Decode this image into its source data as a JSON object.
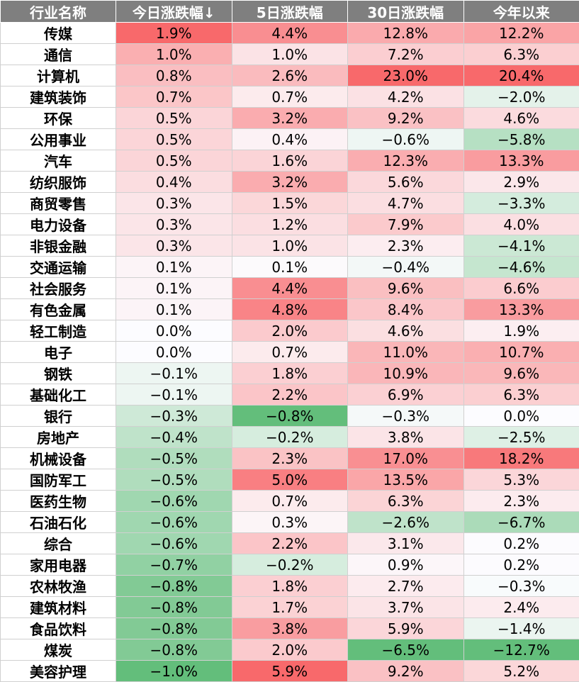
{
  "colors": {
    "header_bg": "#7f7f7f",
    "header_text": "#ffffff",
    "positive_max": "#f8696b",
    "negative_max": "#63be7b",
    "neutral": "#fcfcff"
  },
  "chart_data": {
    "type": "table",
    "columns": [
      "行业名称",
      "今日涨跌幅↓",
      "5日涨跌幅",
      "30日涨跌幅",
      "今年以来"
    ],
    "rows": [
      {
        "name": "传媒",
        "values": [
          "1.9%",
          "4.4%",
          "12.8%",
          "12.2%"
        ]
      },
      {
        "name": "通信",
        "values": [
          "1.0%",
          "1.0%",
          "7.2%",
          "6.3%"
        ]
      },
      {
        "name": "计算机",
        "values": [
          "0.8%",
          "2.6%",
          "23.0%",
          "20.4%"
        ]
      },
      {
        "name": "建筑装饰",
        "values": [
          "0.7%",
          "0.7%",
          "4.2%",
          "−2.0%"
        ]
      },
      {
        "name": "环保",
        "values": [
          "0.5%",
          "3.2%",
          "9.2%",
          "4.6%"
        ]
      },
      {
        "name": "公用事业",
        "values": [
          "0.5%",
          "0.4%",
          "−0.6%",
          "−5.8%"
        ]
      },
      {
        "name": "汽车",
        "values": [
          "0.5%",
          "1.6%",
          "12.3%",
          "13.3%"
        ]
      },
      {
        "name": "纺织服饰",
        "values": [
          "0.4%",
          "3.2%",
          "5.6%",
          "2.9%"
        ]
      },
      {
        "name": "商贸零售",
        "values": [
          "0.3%",
          "1.5%",
          "4.7%",
          "−3.3%"
        ]
      },
      {
        "name": "电力设备",
        "values": [
          "0.3%",
          "1.2%",
          "7.9%",
          "4.0%"
        ]
      },
      {
        "name": "非银金融",
        "values": [
          "0.3%",
          "1.0%",
          "2.3%",
          "−4.1%"
        ]
      },
      {
        "name": "交通运输",
        "values": [
          "0.1%",
          "0.1%",
          "−0.4%",
          "−4.6%"
        ]
      },
      {
        "name": "社会服务",
        "values": [
          "0.1%",
          "4.4%",
          "9.6%",
          "6.6%"
        ]
      },
      {
        "name": "有色金属",
        "values": [
          "0.1%",
          "4.8%",
          "8.4%",
          "13.3%"
        ]
      },
      {
        "name": "轻工制造",
        "values": [
          "0.0%",
          "2.0%",
          "4.6%",
          "1.9%"
        ]
      },
      {
        "name": "电子",
        "values": [
          "0.0%",
          "0.7%",
          "11.0%",
          "10.7%"
        ]
      },
      {
        "name": "钢铁",
        "values": [
          "−0.1%",
          "1.8%",
          "10.9%",
          "9.6%"
        ]
      },
      {
        "name": "基础化工",
        "values": [
          "−0.1%",
          "2.2%",
          "6.9%",
          "6.3%"
        ]
      },
      {
        "name": "银行",
        "values": [
          "−0.3%",
          "−0.8%",
          "−0.3%",
          "0.0%"
        ]
      },
      {
        "name": "房地产",
        "values": [
          "−0.4%",
          "−0.2%",
          "3.8%",
          "−2.5%"
        ]
      },
      {
        "name": "机械设备",
        "values": [
          "−0.5%",
          "2.3%",
          "17.0%",
          "18.2%"
        ]
      },
      {
        "name": "国防军工",
        "values": [
          "−0.5%",
          "5.0%",
          "13.5%",
          "5.3%"
        ]
      },
      {
        "name": "医药生物",
        "values": [
          "−0.6%",
          "0.7%",
          "6.3%",
          "2.3%"
        ]
      },
      {
        "name": "石油石化",
        "values": [
          "−0.6%",
          "0.3%",
          "−2.6%",
          "−6.7%"
        ]
      },
      {
        "name": "综合",
        "values": [
          "−0.6%",
          "2.2%",
          "3.1%",
          "0.2%"
        ]
      },
      {
        "name": "家用电器",
        "values": [
          "−0.7%",
          "−0.2%",
          "0.9%",
          "0.2%"
        ]
      },
      {
        "name": "农林牧渔",
        "values": [
          "−0.8%",
          "1.8%",
          "2.7%",
          "−0.3%"
        ]
      },
      {
        "name": "建筑材料",
        "values": [
          "−0.8%",
          "1.7%",
          "3.7%",
          "2.4%"
        ]
      },
      {
        "name": "食品饮料",
        "values": [
          "−0.8%",
          "3.8%",
          "5.9%",
          "−1.4%"
        ]
      },
      {
        "name": "煤炭",
        "values": [
          "−0.8%",
          "2.0%",
          "−6.5%",
          "−12.7%"
        ]
      },
      {
        "name": "美容护理",
        "values": [
          "−1.0%",
          "5.9%",
          "9.2%",
          "5.2%"
        ]
      }
    ]
  }
}
